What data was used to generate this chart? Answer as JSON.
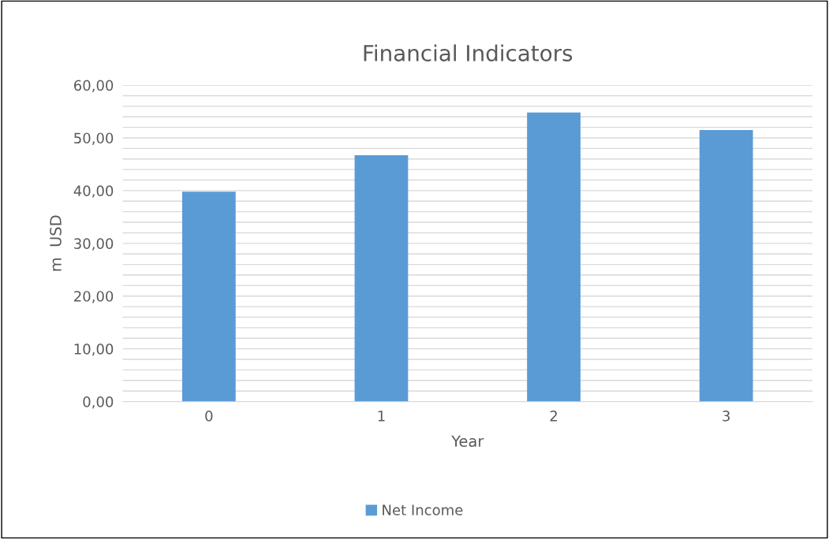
{
  "chart_data": {
    "type": "bar",
    "title": "Financial Indicators",
    "xlabel": "Year",
    "ylabel": "m  USD",
    "categories": [
      "0",
      "1",
      "2",
      "3"
    ],
    "series": [
      {
        "name": "Net Income",
        "color": "#5b9bd5",
        "values": [
          39.8,
          46.7,
          54.8,
          51.5
        ]
      }
    ],
    "ylim": [
      0,
      60
    ],
    "yticks": [
      {
        "value": 0,
        "label": "0,00"
      },
      {
        "value": 2,
        "label": null
      },
      {
        "value": 4,
        "label": null
      },
      {
        "value": 6,
        "label": null
      },
      {
        "value": 8,
        "label": null
      },
      {
        "value": 10,
        "label": "10,00"
      },
      {
        "value": 12,
        "label": null
      },
      {
        "value": 14,
        "label": null
      },
      {
        "value": 16,
        "label": null
      },
      {
        "value": 18,
        "label": null
      },
      {
        "value": 20,
        "label": "20,00"
      },
      {
        "value": 22,
        "label": null
      },
      {
        "value": 24,
        "label": null
      },
      {
        "value": 26,
        "label": null
      },
      {
        "value": 28,
        "label": null
      },
      {
        "value": 30,
        "label": "30,00"
      },
      {
        "value": 32,
        "label": null
      },
      {
        "value": 34,
        "label": null
      },
      {
        "value": 36,
        "label": null
      },
      {
        "value": 38,
        "label": null
      },
      {
        "value": 40,
        "label": "40,00"
      },
      {
        "value": 42,
        "label": null
      },
      {
        "value": 44,
        "label": null
      },
      {
        "value": 46,
        "label": null
      },
      {
        "value": 48,
        "label": null
      },
      {
        "value": 50,
        "label": "50,00"
      },
      {
        "value": 52,
        "label": null
      },
      {
        "value": 54,
        "label": null
      },
      {
        "value": 56,
        "label": null
      },
      {
        "value": 58,
        "label": null
      },
      {
        "value": 60,
        "label": "60,00"
      }
    ],
    "grid": "y",
    "legend": "bottom"
  }
}
